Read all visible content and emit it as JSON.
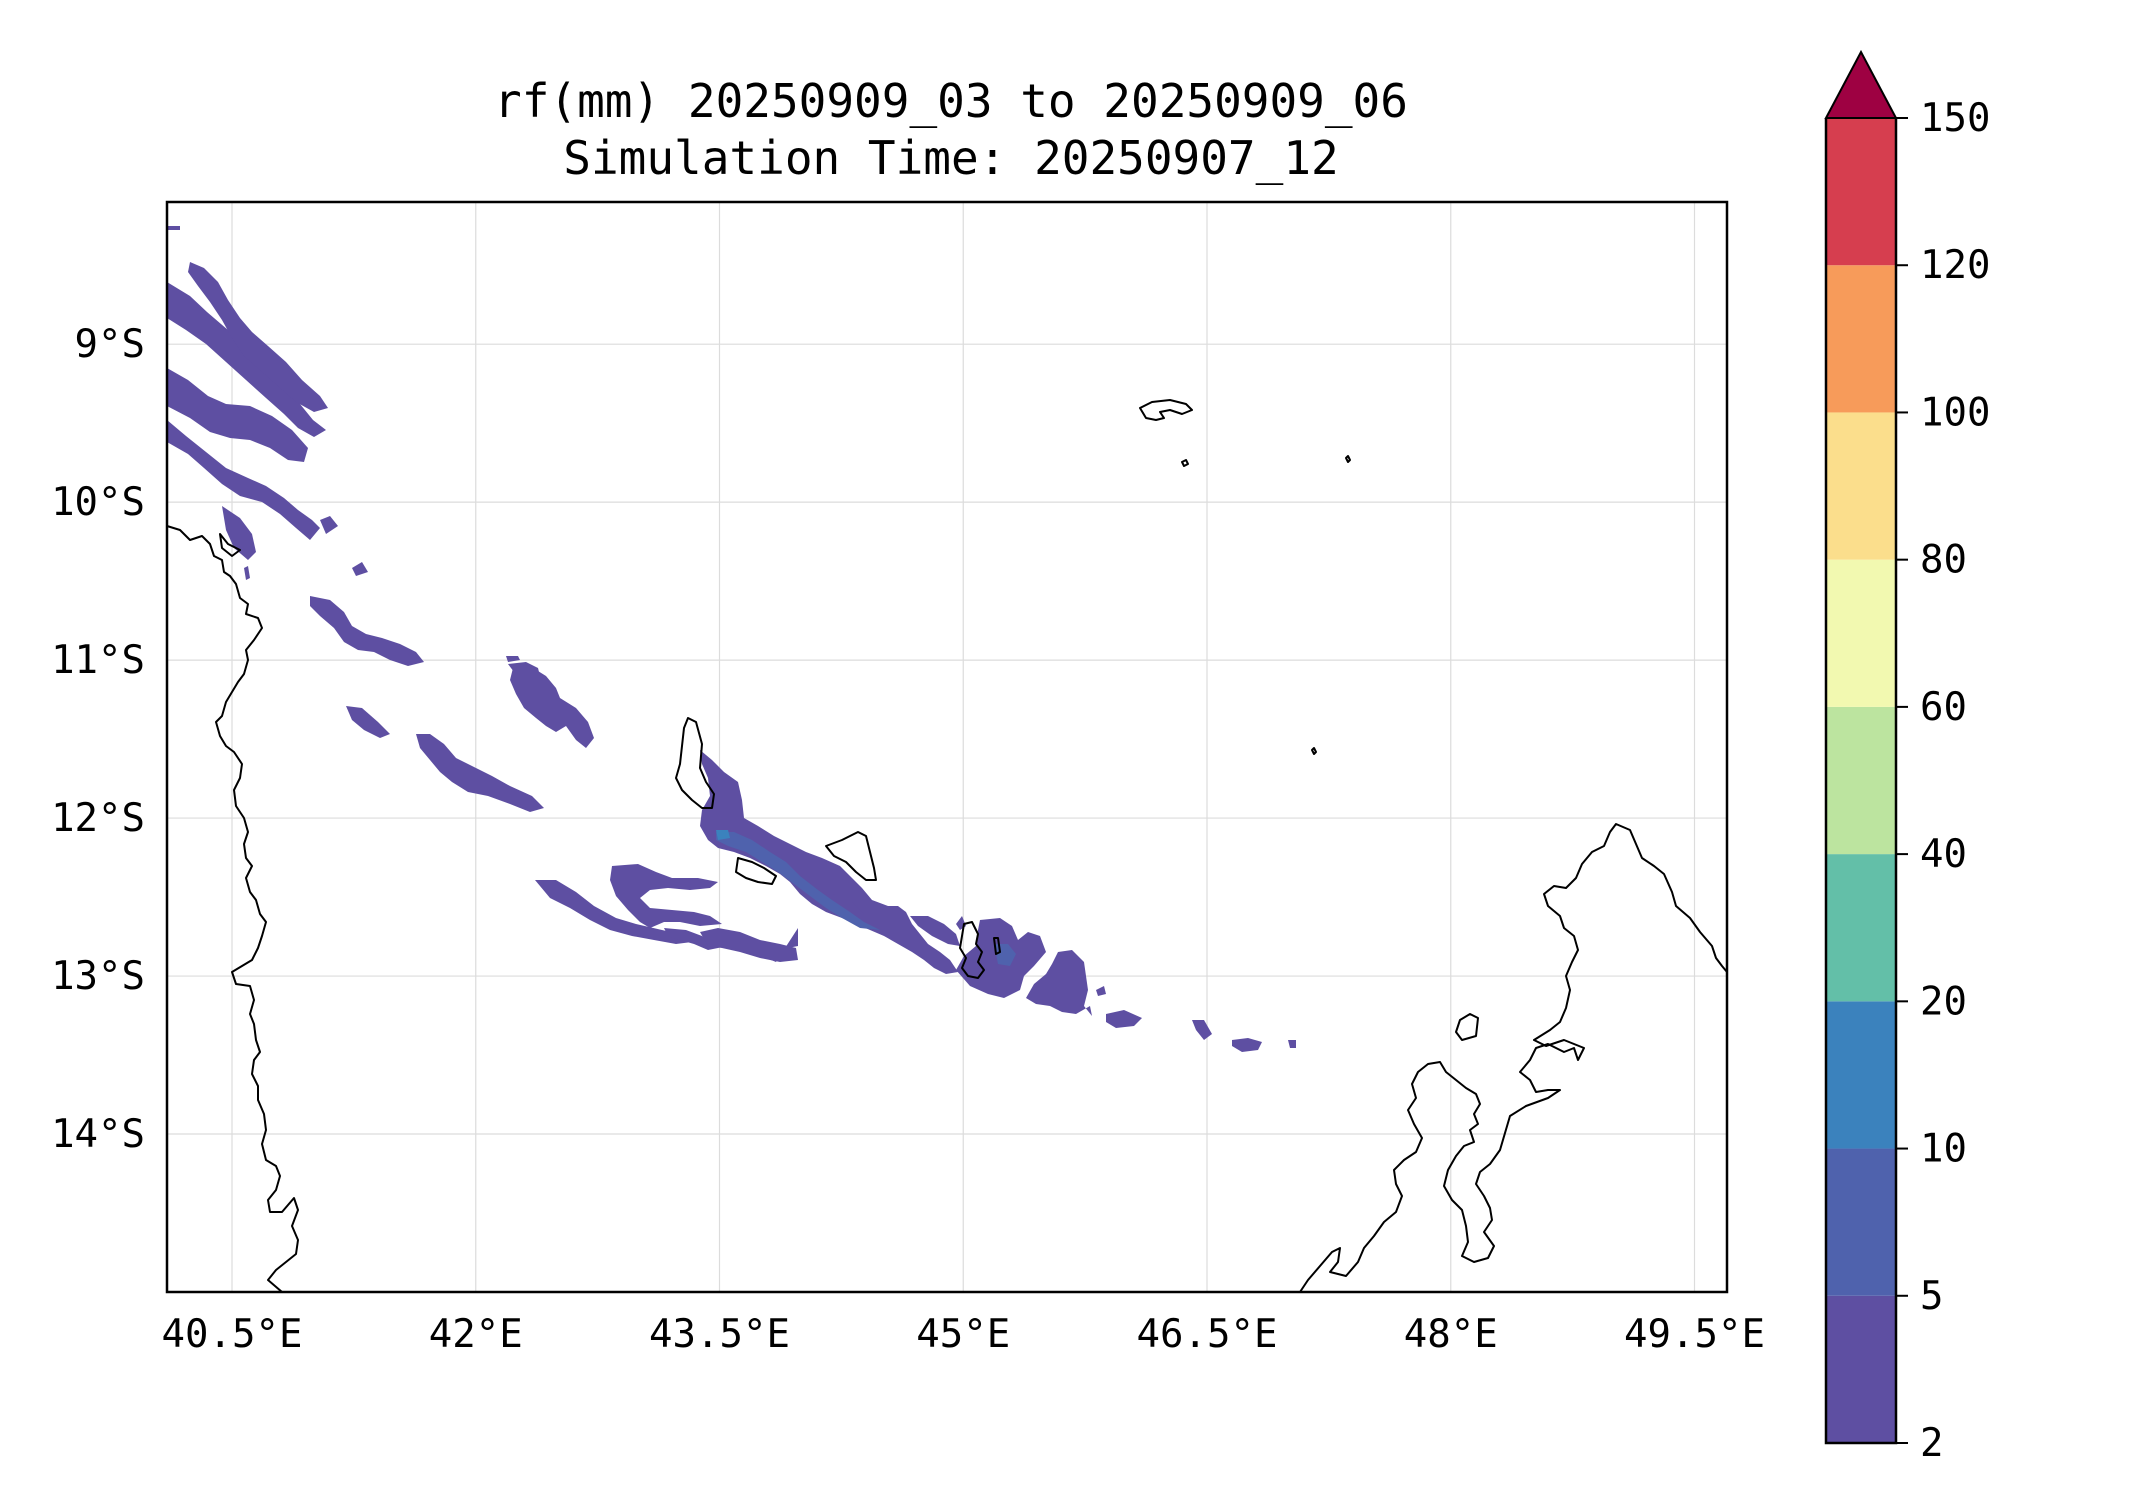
{
  "title": {
    "line1": "rf(mm) 20250909_03 to 20250909_06",
    "line2": "Simulation Time: 20250907_12"
  },
  "map": {
    "lon_range": [
      40.1,
      49.7
    ],
    "lat_range": [
      -15.0,
      -8.1
    ],
    "lon_ticks": [
      {
        "value": 40.5,
        "label": "40.5°E"
      },
      {
        "value": 42.0,
        "label": "42°E"
      },
      {
        "value": 43.5,
        "label": "43.5°E"
      },
      {
        "value": 45.0,
        "label": "45°E"
      },
      {
        "value": 46.5,
        "label": "46.5°E"
      },
      {
        "value": 48.0,
        "label": "48°E"
      },
      {
        "value": 49.5,
        "label": "49.5°E"
      }
    ],
    "lat_ticks": [
      {
        "value": -9,
        "label": "9°S"
      },
      {
        "value": -10,
        "label": "10°S"
      },
      {
        "value": -11,
        "label": "11°S"
      },
      {
        "value": -12,
        "label": "12°S"
      },
      {
        "value": -13,
        "label": "13°S"
      },
      {
        "value": -14,
        "label": "14°S"
      }
    ],
    "grid": true,
    "coastlines": true,
    "field": "rainfall accumulation, mostly 2–5 mm band (dark purple) with small 5–10 mm patches"
  },
  "colorbar": {
    "levels": [
      "2",
      "5",
      "10",
      "20",
      "40",
      "60",
      "80",
      "100",
      "120",
      "150"
    ],
    "colors": [
      "#5e4fa2",
      "#4f62ad",
      "#3b82bd",
      "#63bfa8",
      "#bce49f",
      "#f2f9b0",
      "#fbde8c",
      "#f79b5a",
      "#d63e4f"
    ],
    "extend_color": "#9e0142",
    "extend": "max"
  },
  "chart_data": {
    "type": "heatmap",
    "title": "rf(mm) 20250909_03 to 20250909_06",
    "subtitle": "Simulation Time: 20250907_12",
    "xlabel": "",
    "ylabel": "",
    "xlim": [
      40.1,
      49.7
    ],
    "ylim": [
      -15.0,
      -8.1
    ],
    "x_tick_labels": [
      "40.5°E",
      "42°E",
      "43.5°E",
      "45°E",
      "46.5°E",
      "48°E",
      "49.5°E"
    ],
    "y_tick_labels": [
      "9°S",
      "10°S",
      "11°S",
      "12°S",
      "13°S",
      "14°S"
    ],
    "color_levels": [
      2,
      5,
      10,
      20,
      40,
      60,
      80,
      100,
      120,
      150
    ],
    "max_level_present": 10,
    "grid": true,
    "legend": "colorbar-right"
  }
}
